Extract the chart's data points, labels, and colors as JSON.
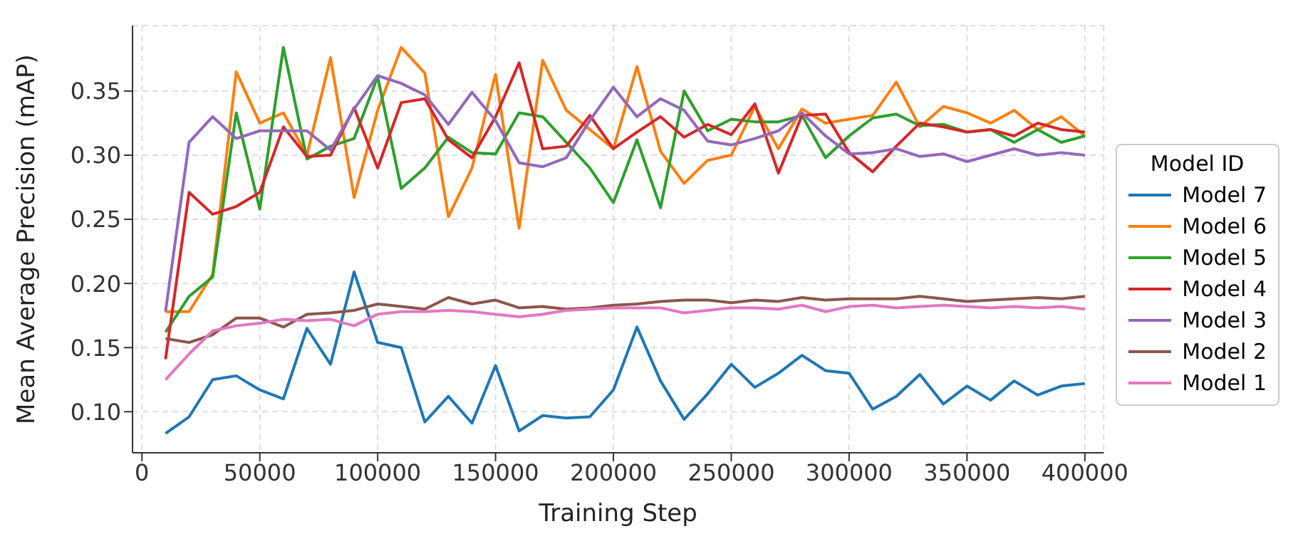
{
  "chart_data": {
    "type": "line",
    "xlabel": "Training Step",
    "ylabel": "Mean Average Precision (mAP)",
    "legend_title": "Model ID",
    "legend": "right",
    "grid": true,
    "marker": "none",
    "line_style": "solid",
    "x": [
      10000,
      20000,
      30000,
      40000,
      50000,
      60000,
      70000,
      80000,
      90000,
      100000,
      110000,
      120000,
      130000,
      140000,
      150000,
      160000,
      170000,
      180000,
      190000,
      200000,
      210000,
      220000,
      230000,
      240000,
      250000,
      260000,
      270000,
      280000,
      290000,
      300000,
      310000,
      320000,
      330000,
      340000,
      350000,
      360000,
      370000,
      380000,
      390000,
      400000
    ],
    "xlim": [
      -4000,
      408000
    ],
    "xticks": [
      0,
      50000,
      100000,
      150000,
      200000,
      250000,
      300000,
      350000,
      400000
    ],
    "ylim": [
      0.068,
      0.401
    ],
    "yticks": [
      {
        "value": 0.1,
        "label": "0.10"
      },
      {
        "value": 0.15,
        "label": "0.15"
      },
      {
        "value": 0.2,
        "label": "0.20"
      },
      {
        "value": 0.25,
        "label": "0.25"
      },
      {
        "value": 0.3,
        "label": "0.30"
      },
      {
        "value": 0.35,
        "label": "0.35"
      }
    ],
    "series": [
      {
        "name": "Model 7",
        "color": "#1f77b4",
        "values": [
          0.083,
          0.096,
          0.125,
          0.128,
          0.117,
          0.11,
          0.165,
          0.137,
          0.209,
          0.154,
          0.15,
          0.092,
          0.112,
          0.091,
          0.136,
          0.085,
          0.097,
          0.095,
          0.096,
          0.117,
          0.166,
          0.124,
          0.094,
          0.114,
          0.137,
          0.119,
          0.13,
          0.144,
          0.132,
          0.13,
          0.102,
          0.112,
          0.129,
          0.106,
          0.12,
          0.109,
          0.124,
          0.113,
          0.12,
          0.122
        ]
      },
      {
        "name": "Model 6",
        "color": "#ff7f0e",
        "values": [
          0.178,
          0.178,
          0.207,
          0.365,
          0.325,
          0.333,
          0.3,
          0.376,
          0.267,
          0.335,
          0.384,
          0.364,
          0.252,
          0.29,
          0.363,
          0.243,
          0.374,
          0.335,
          0.32,
          0.305,
          0.369,
          0.303,
          0.278,
          0.296,
          0.3,
          0.338,
          0.305,
          0.336,
          0.325,
          0.328,
          0.331,
          0.357,
          0.322,
          0.338,
          0.333,
          0.325,
          0.335,
          0.32,
          0.33,
          0.315
        ]
      },
      {
        "name": "Model 5",
        "color": "#2ca02c",
        "values": [
          0.162,
          0.19,
          0.205,
          0.333,
          0.258,
          0.384,
          0.297,
          0.307,
          0.313,
          0.361,
          0.274,
          0.29,
          0.314,
          0.302,
          0.301,
          0.333,
          0.33,
          0.31,
          0.29,
          0.263,
          0.312,
          0.259,
          0.35,
          0.319,
          0.328,
          0.326,
          0.326,
          0.331,
          0.298,
          0.315,
          0.329,
          0.332,
          0.323,
          0.324,
          0.318,
          0.32,
          0.31,
          0.32,
          0.31,
          0.315
        ]
      },
      {
        "name": "Model 4",
        "color": "#d62728",
        "values": [
          0.141,
          0.271,
          0.254,
          0.26,
          0.271,
          0.322,
          0.299,
          0.3,
          0.337,
          0.29,
          0.341,
          0.344,
          0.312,
          0.298,
          0.33,
          0.372,
          0.305,
          0.307,
          0.331,
          0.305,
          0.318,
          0.33,
          0.314,
          0.324,
          0.316,
          0.34,
          0.286,
          0.331,
          0.332,
          0.302,
          0.287,
          0.307,
          0.325,
          0.322,
          0.318,
          0.32,
          0.315,
          0.325,
          0.32,
          0.318
        ]
      },
      {
        "name": "Model 3",
        "color": "#9467bd",
        "values": [
          0.178,
          0.31,
          0.33,
          0.313,
          0.319,
          0.319,
          0.319,
          0.304,
          0.336,
          0.362,
          0.356,
          0.347,
          0.324,
          0.349,
          0.327,
          0.294,
          0.291,
          0.298,
          0.327,
          0.353,
          0.33,
          0.344,
          0.335,
          0.311,
          0.308,
          0.313,
          0.319,
          0.333,
          0.315,
          0.301,
          0.302,
          0.305,
          0.299,
          0.301,
          0.295,
          0.3,
          0.305,
          0.3,
          0.302,
          0.3
        ]
      },
      {
        "name": "Model 2",
        "color": "#8c564b",
        "values": [
          0.157,
          0.154,
          0.16,
          0.173,
          0.173,
          0.166,
          0.176,
          0.177,
          0.179,
          0.184,
          0.182,
          0.18,
          0.189,
          0.184,
          0.187,
          0.181,
          0.182,
          0.18,
          0.181,
          0.183,
          0.184,
          0.186,
          0.187,
          0.187,
          0.185,
          0.187,
          0.186,
          0.189,
          0.187,
          0.188,
          0.188,
          0.188,
          0.19,
          0.188,
          0.186,
          0.187,
          0.188,
          0.189,
          0.188,
          0.19
        ]
      },
      {
        "name": "Model 1",
        "color": "#e377c2",
        "values": [
          0.125,
          0.145,
          0.163,
          0.167,
          0.169,
          0.172,
          0.171,
          0.172,
          0.167,
          0.176,
          0.178,
          0.178,
          0.179,
          0.178,
          0.176,
          0.174,
          0.176,
          0.179,
          0.18,
          0.181,
          0.181,
          0.181,
          0.177,
          0.179,
          0.181,
          0.181,
          0.18,
          0.183,
          0.178,
          0.182,
          0.183,
          0.181,
          0.182,
          0.183,
          0.182,
          0.181,
          0.182,
          0.181,
          0.182,
          0.18
        ]
      }
    ]
  }
}
